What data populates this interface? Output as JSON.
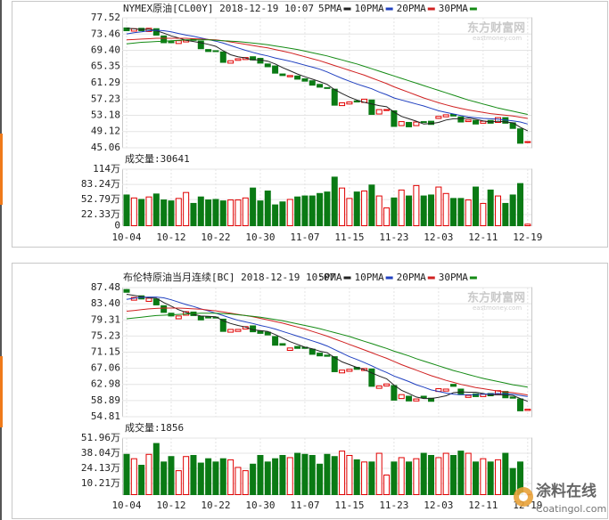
{
  "chart_data": [
    {
      "type": "candlestick",
      "title": "NYMEX原油[CL00Y] 2018-12-19 10:07",
      "categories": [
        "10-04",
        null,
        null,
        null,
        null,
        null,
        "10-12",
        null,
        null,
        null,
        null,
        null,
        "10-22",
        null,
        null,
        null,
        null,
        null,
        "10-30",
        null,
        null,
        null,
        null,
        null,
        "11-07",
        null,
        null,
        null,
        null,
        null,
        "11-15",
        null,
        null,
        null,
        null,
        null,
        "11-23",
        null,
        null,
        null,
        null,
        null,
        "12-03",
        null,
        null,
        null,
        null,
        null,
        "12-11",
        null,
        null,
        null,
        null,
        null,
        "12-19"
      ],
      "open": [
        75.0,
        74.2,
        74.9,
        74.1,
        74.8,
        73.0,
        71.6,
        71.1,
        71.5,
        72.2,
        71.7,
        69.6,
        69.3,
        69.0,
        66.2,
        66.9,
        67.1,
        67.8,
        67.4,
        66.0,
        65.5,
        63.5,
        62.8,
        63.0,
        62.3,
        61.8,
        60.9,
        60.1,
        59.7,
        55.6,
        56.0,
        56.8,
        56.4,
        57.0,
        53.5,
        54.5,
        54.3,
        50.6,
        51.4,
        50.6,
        51.6,
        51.7,
        52.4,
        52.8,
        53.4,
        52.8,
        51.6,
        51.9,
        51.2,
        51.9,
        51.4,
        52.6,
        51.3,
        49.8,
        46.4
      ],
      "close": [
        74.3,
        74.8,
        74.3,
        74.9,
        73.2,
        71.3,
        71.3,
        71.8,
        71.9,
        71.9,
        69.8,
        69.1,
        69.2,
        66.4,
        66.8,
        67.3,
        67.6,
        67.0,
        66.2,
        65.3,
        63.7,
        63.1,
        63.1,
        62.2,
        61.7,
        60.7,
        60.2,
        59.9,
        55.7,
        56.3,
        56.5,
        56.5,
        57.2,
        53.4,
        54.6,
        54.6,
        50.4,
        51.6,
        50.3,
        51.5,
        51.4,
        50.9,
        52.9,
        53.3,
        53.0,
        51.5,
        52.0,
        51.0,
        51.7,
        51.2,
        52.6,
        51.2,
        49.9,
        46.2,
        46.6
      ],
      "volume": [
        62,
        56,
        53,
        58,
        64,
        52,
        50,
        55,
        67,
        45,
        58,
        52,
        53,
        50,
        52,
        52,
        56,
        76,
        50,
        70,
        42,
        48,
        53,
        58,
        60,
        60,
        65,
        68,
        98,
        76,
        55,
        68,
        70,
        82,
        60,
        36,
        56,
        72,
        60,
        81,
        60,
        62,
        78,
        65,
        55,
        55,
        52,
        78,
        45,
        72,
        60,
        45,
        62,
        85,
        3.06
      ],
      "ma_series": [
        {
          "name": "5PMA",
          "color": "#222222",
          "values": [
            74.9,
            74.8,
            74.6,
            74.7,
            74.3,
            73.7,
            73.0,
            72.5,
            71.9,
            71.6,
            71.3,
            70.9,
            70.4,
            69.3,
            68.3,
            67.8,
            67.5,
            67.0,
            67.0,
            66.7,
            66.0,
            65.1,
            64.3,
            63.5,
            62.8,
            62.2,
            61.6,
            60.9,
            59.6,
            58.6,
            57.7,
            57.0,
            56.4,
            56.0,
            55.6,
            55.3,
            54.0,
            52.9,
            52.3,
            51.7,
            51.0,
            51.1,
            51.4,
            52.0,
            52.3,
            52.3,
            52.5,
            52.2,
            51.8,
            51.5,
            51.7,
            51.5,
            51.3,
            50.2,
            49.3
          ]
        },
        {
          "name": "10PMA",
          "color": "#2040c0",
          "values": [
            73.5,
            73.8,
            74.0,
            74.3,
            74.4,
            74.3,
            74.0,
            73.6,
            73.2,
            72.9,
            72.5,
            72.1,
            71.7,
            71.2,
            70.6,
            70.0,
            69.4,
            68.9,
            68.4,
            68.0,
            67.5,
            67.1,
            66.7,
            66.2,
            65.7,
            65.2,
            64.7,
            64.0,
            63.2,
            62.4,
            61.7,
            61.0,
            60.4,
            59.8,
            59.0,
            58.3,
            57.5,
            57.0,
            56.5,
            56.0,
            55.5,
            54.9,
            54.3,
            53.9,
            53.5,
            53.1,
            52.8,
            52.6,
            52.4,
            52.3,
            52.2,
            52.0,
            51.8,
            51.5,
            51.0
          ]
        },
        {
          "name": "20PMA",
          "color": "#d02020",
          "values": [
            72.0,
            72.1,
            72.2,
            72.3,
            72.4,
            72.4,
            72.4,
            72.4,
            72.4,
            72.3,
            72.2,
            72.1,
            72.0,
            71.8,
            71.5,
            71.2,
            70.9,
            70.6,
            70.3,
            70.0,
            69.6,
            69.2,
            68.8,
            68.3,
            67.8,
            67.3,
            66.8,
            66.2,
            65.6,
            65.0,
            64.4,
            63.8,
            63.2,
            62.5,
            61.8,
            61.1,
            60.3,
            59.6,
            58.9,
            58.2,
            57.5,
            56.9,
            56.3,
            55.8,
            55.3,
            54.9,
            54.5,
            54.2,
            53.9,
            53.6,
            53.4,
            53.2,
            53.0,
            52.7,
            52.4
          ]
        },
        {
          "name": "30PMA",
          "color": "#138a13",
          "values": [
            71.0,
            71.2,
            71.4,
            71.5,
            71.6,
            71.7,
            71.8,
            71.9,
            72.0,
            72.0,
            72.0,
            72.0,
            71.9,
            71.8,
            71.7,
            71.6,
            71.4,
            71.2,
            71.0,
            70.8,
            70.5,
            70.2,
            69.9,
            69.6,
            69.2,
            68.8,
            68.4,
            68.0,
            67.5,
            67.0,
            66.5,
            66.0,
            65.4,
            64.8,
            64.2,
            63.6,
            63.0,
            62.4,
            61.8,
            61.2,
            60.6,
            60.0,
            59.4,
            58.8,
            58.2,
            57.6,
            57.0,
            56.5,
            56.0,
            55.5,
            55.0,
            54.6,
            54.2,
            53.8,
            53.4
          ]
        }
      ],
      "up_color": "#e00000",
      "down_color": "#0a7a14",
      "ylim": [
        45.06,
        77.52
      ],
      "yticks": [
        77.52,
        73.46,
        {
          "value": 69.4,
          "label": "69.40"
        },
        65.35,
        61.29,
        57.23,
        53.18,
        49.12,
        45.06
      ],
      "volume_label": "成交量:30641",
      "volume_ylim": [
        0,
        114
      ],
      "volume_yticks": [
        {
          "value": 114,
          "label": "114万"
        },
        {
          "value": 83.24,
          "label": "83.24万"
        },
        {
          "value": 52.79,
          "label": "52.79万"
        },
        {
          "value": 22.33,
          "label": "22.33万"
        },
        0
      ],
      "watermark": "东方财富网",
      "watermark_sub": "eastmoney.com"
    },
    {
      "type": "candlestick",
      "title": "布伦特原油当月连续[BC] 2018-12-19 10:07",
      "categories": [
        "10-04",
        null,
        null,
        null,
        null,
        null,
        "10-12",
        null,
        null,
        null,
        null,
        null,
        "10-22",
        null,
        null,
        null,
        null,
        null,
        "10-30",
        null,
        null,
        null,
        null,
        null,
        "11-07",
        null,
        null,
        null,
        null,
        null,
        "11-15",
        null,
        null,
        null,
        null,
        null,
        "11-23",
        null,
        null,
        null,
        null,
        null,
        "12-03",
        null,
        null,
        null,
        null,
        null,
        "12-11",
        null,
        null,
        null,
        null,
        null,
        "12-19"
      ],
      "open": [
        87.0,
        84.3,
        85.4,
        84.0,
        84.6,
        82.9,
        81.0,
        79.6,
        80.5,
        81.3,
        80.2,
        80.1,
        80.0,
        79.5,
        76.2,
        76.4,
        77.0,
        77.8,
        76.5,
        76.2,
        75.1,
        73.3,
        71.6,
        72.6,
        72.4,
        71.9,
        70.9,
        70.4,
        70.0,
        65.9,
        66.3,
        67.3,
        66.5,
        66.9,
        62.0,
        62.6,
        62.7,
        59.4,
        60.0,
        58.8,
        60.0,
        59.5,
        61.2,
        61.3,
        63.0,
        61.8,
        59.7,
        60.6,
        59.9,
        60.7,
        60.4,
        61.2,
        59.8,
        59.3,
        56.4
      ],
      "close": [
        86.3,
        85.0,
        84.6,
        84.8,
        83.1,
        81.2,
        80.3,
        80.3,
        81.4,
        80.4,
        79.3,
        79.8,
        79.8,
        76.4,
        76.9,
        76.9,
        77.6,
        76.3,
        75.9,
        75.5,
        72.9,
        72.9,
        72.2,
        72.1,
        72.1,
        70.6,
        70.2,
        70.1,
        66.2,
        66.6,
        66.8,
        66.8,
        67.0,
        62.5,
        62.6,
        63.1,
        59.0,
        60.4,
        58.8,
        59.3,
        59.6,
        58.7,
        61.9,
        61.8,
        62.5,
        60.4,
        60.2,
        59.9,
        60.5,
        60.1,
        61.4,
        59.6,
        59.5,
        56.3,
        56.7
      ],
      "volume": [
        37,
        33,
        27,
        37,
        47,
        30,
        35,
        22,
        35,
        36,
        29,
        33,
        30,
        33,
        32,
        25,
        22,
        28,
        36,
        30,
        33,
        36,
        34,
        38,
        37,
        36,
        28,
        37,
        35,
        40,
        36,
        32,
        30,
        30,
        38,
        18,
        30,
        34,
        30,
        33,
        38,
        36,
        34,
        38,
        36,
        40,
        38,
        30,
        33,
        30,
        32,
        38,
        24,
        30,
        0.1856
      ],
      "ma_series": [
        {
          "name": "5PMA",
          "color": "#222222",
          "values": [
            85.8,
            85.5,
            85.2,
            84.9,
            84.8,
            83.7,
            82.8,
            81.9,
            81.2,
            80.7,
            80.3,
            80.2,
            80.1,
            79.1,
            78.4,
            77.9,
            77.5,
            76.8,
            76.6,
            76.4,
            75.6,
            74.7,
            73.8,
            73.1,
            72.4,
            72.0,
            71.4,
            71.0,
            69.8,
            68.7,
            68.0,
            67.3,
            66.7,
            65.9,
            65.1,
            64.4,
            62.8,
            61.5,
            60.7,
            59.8,
            59.4,
            59.4,
            59.7,
            60.1,
            60.9,
            61.1,
            61.0,
            61.0,
            60.7,
            60.3,
            60.4,
            60.3,
            60.2,
            59.4,
            58.7
          ]
        },
        {
          "name": "10PMA",
          "color": "#2040c0",
          "values": [
            84.5,
            84.8,
            85.0,
            85.1,
            85.1,
            84.9,
            84.4,
            83.8,
            83.2,
            82.7,
            82.1,
            81.6,
            81.0,
            80.4,
            79.8,
            79.2,
            78.8,
            78.4,
            77.9,
            77.5,
            77.0,
            76.4,
            75.8,
            75.2,
            74.6,
            74.0,
            73.4,
            72.7,
            71.8,
            70.9,
            70.0,
            69.3,
            68.5,
            67.7,
            66.8,
            66.0,
            65.1,
            64.4,
            63.7,
            62.9,
            62.3,
            61.6,
            61.2,
            60.8,
            60.5,
            60.4,
            60.4,
            60.4,
            60.5,
            60.6,
            60.7,
            60.6,
            60.5,
            60.2,
            59.9
          ]
        },
        {
          "name": "20PMA",
          "color": "#d02020",
          "values": [
            81.5,
            81.7,
            81.9,
            82.1,
            82.2,
            82.3,
            82.3,
            82.3,
            82.2,
            82.1,
            82.0,
            81.8,
            81.6,
            81.3,
            81.0,
            80.7,
            80.4,
            80.1,
            79.7,
            79.3,
            78.9,
            78.5,
            78.0,
            77.5,
            77.0,
            76.4,
            75.8,
            75.2,
            74.5,
            73.8,
            73.1,
            72.4,
            71.7,
            71.0,
            70.3,
            69.6,
            68.8,
            68.0,
            67.3,
            66.6,
            65.9,
            65.2,
            64.6,
            64.0,
            63.5,
            63.0,
            62.6,
            62.2,
            61.9,
            61.6,
            61.3,
            61.1,
            60.9,
            60.6,
            60.3
          ]
        },
        {
          "name": "30PMA",
          "color": "#138a13",
          "values": [
            79.6,
            79.8,
            80.0,
            80.2,
            80.4,
            80.5,
            80.6,
            80.7,
            80.8,
            80.9,
            81.0,
            81.0,
            81.0,
            80.9,
            80.8,
            80.6,
            80.4,
            80.2,
            80.0,
            79.7,
            79.4,
            79.1,
            78.7,
            78.3,
            77.9,
            77.5,
            77.1,
            76.6,
            76.1,
            75.6,
            75.1,
            74.5,
            73.9,
            73.3,
            72.7,
            72.1,
            71.4,
            70.8,
            70.2,
            69.5,
            68.9,
            68.3,
            67.7,
            67.1,
            66.5,
            66.0,
            65.5,
            65.0,
            64.5,
            64.1,
            63.7,
            63.3,
            62.9,
            62.6,
            62.3
          ]
        }
      ],
      "up_color": "#e00000",
      "down_color": "#0a7a14",
      "ylim": [
        54.81,
        87.48
      ],
      "yticks": [
        87.48,
        {
          "value": 83.4,
          "label": "83.40"
        },
        79.31,
        75.23,
        71.15,
        67.06,
        62.98,
        58.89,
        54.81
      ],
      "volume_label": "成交量:1856",
      "volume_ylim": [
        0,
        51.96
      ],
      "volume_yticks": [
        {
          "value": 51.96,
          "label": "51.96万"
        },
        {
          "value": 38.04,
          "label": "38.04万"
        },
        {
          "value": 24.13,
          "label": "24.13万"
        },
        {
          "value": 10.21,
          "label": "10.21万"
        }
      ],
      "watermark": "东方财富网",
      "watermark_sub": "eastmoney.com"
    }
  ],
  "site_watermark": {
    "title": "涂料在线",
    "subtitle": "Coatingol.com"
  }
}
